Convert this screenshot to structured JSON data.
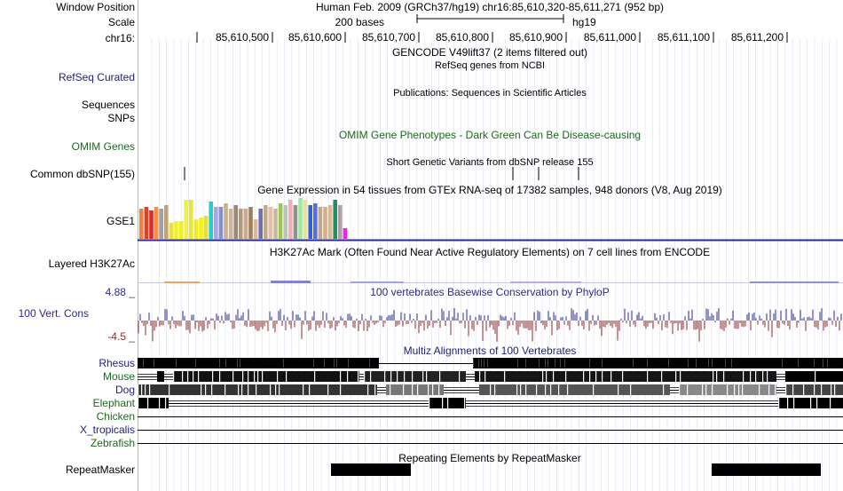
{
  "ruler": {
    "window_label": "Window Position",
    "window_text": "Human Feb. 2009 (GRCh37/hg19)   chr16:85,610,320-85,611,271 (952 bp)",
    "scale_label": "Scale",
    "scale_text": "200 bases",
    "scale_assembly": "hg19",
    "chrom_label": "chr16:",
    "ticks": [
      "85,610,500",
      "85,610,600",
      "85,610,700",
      "85,610,800",
      "85,610,900",
      "85,611,000",
      "85,611,100",
      "85,611,200"
    ]
  },
  "tracks": {
    "gencode_title": "GENCODE V49lift37 (2 items filtered out)",
    "refseq_title": "RefSeq genes from NCBI",
    "refseq_label": "RefSeq Curated",
    "publications_title": "Publications: Sequences in Scientific Articles",
    "sequences_label": "Sequences",
    "snps_label": "SNPs",
    "omim_label": "OMIM Genes",
    "omim_title": "OMIM Gene Phenotypes - Dark Green Can Be Disease-causing",
    "dbsnp_title": "Short Genetic Variants from dbSNP release 155",
    "dbsnp_label": "Common dbSNP(155)",
    "gtex_title": "Gene Expression in 54 tissues from GTEx RNA-seq of 17382 samples, 948 donors (V8, Aug 2019)",
    "gtex_label": "GSE1",
    "h3k27ac_title": "H3K27Ac Mark (Often Found Near Active Regulatory Elements) on 7 cell lines from ENCODE",
    "h3k27ac_label": "Layered H3K27Ac",
    "cons_title": "100 vertebrates Basewise Conservation by PhyloP",
    "cons_label": "100 Vert. Cons",
    "cons_max": "4.88 _",
    "cons_min": "-4.5 _",
    "multiz_title": "Multiz Alignments of 100 Vertebrates",
    "species": [
      "Rhesus",
      "Mouse",
      "Dog",
      "Elephant",
      "Chicken",
      "X_tropicalis",
      "Zebrafish"
    ],
    "repeat_title": "Repeating Elements by RepeatMasker",
    "repeat_label": "RepeatMasker"
  },
  "colors": {
    "navy": "#1f1f7a",
    "green": "#1a6a1a",
    "cons_blue": "#2a2a8c",
    "cons_red": "#8c2a2a",
    "grid": "#c8c8f0"
  },
  "gtex_colors": [
    "#f08040",
    "#e04020",
    "#d03030",
    "#ff8c40",
    "#a0a0a0",
    "#c8a070",
    "#e8e040",
    "#f0f030",
    "#f0f020",
    "#f0f040",
    "#e8e830",
    "#f0e828",
    "#f4f018",
    "#e0e040",
    "#20d0d0",
    "#a8a8e8",
    "#8090d0",
    "#c8b090",
    "#c8b4a0",
    "#a08870",
    "#b89878",
    "#c8a890",
    "#9c8060",
    "#d8b8a0",
    "#7070b0",
    "#c8a888",
    "#e0c0a8",
    "#c8b8a0",
    "#98c850",
    "#c0c0c0",
    "#f0b0b0",
    "#909090",
    "#a0e8a0",
    "#e8e0a0",
    "#3060e0",
    "#5070e0",
    "#c0a890",
    "#d0b090",
    "#d8b890",
    "#209060",
    "#b0a0a0",
    "#f020f0"
  ],
  "gtex_heights": [
    34,
    36,
    32,
    36,
    34,
    38,
    18,
    20,
    20,
    44,
    44,
    22,
    24,
    26,
    42,
    36,
    36,
    40,
    34,
    38,
    34,
    34,
    36,
    22,
    34,
    38,
    36,
    34,
    40,
    38,
    44,
    38,
    46,
    44,
    38,
    40,
    36,
    36,
    38,
    44,
    38,
    12
  ]
}
